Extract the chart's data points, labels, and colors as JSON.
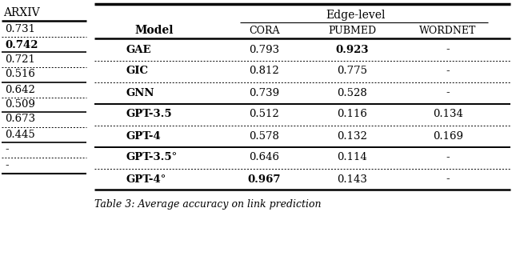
{
  "left_section": {
    "header": "ARXIV",
    "rows": [
      {
        "label": "0.731",
        "bold": false
      },
      {
        "label": "0.742",
        "bold": true
      },
      {
        "label": "0.721",
        "bold": false
      },
      {
        "label": "0.516",
        "bold": false
      },
      {
        "label": "0.642",
        "bold": false
      },
      {
        "label": "0.509",
        "bold": false
      },
      {
        "label": "0.673",
        "bold": false
      },
      {
        "label": "0.445",
        "bold": false
      },
      {
        "label": "-",
        "bold": false
      },
      {
        "label": "-",
        "bold": false
      }
    ],
    "solid_after": [
      0,
      2,
      4,
      6,
      8
    ],
    "dotted_after": [
      1,
      3,
      5,
      7,
      9
    ]
  },
  "right_section": {
    "group_header": "Edge-level",
    "col_headers": [
      "Model",
      "CORA",
      "PUBMED",
      "WORDNET"
    ],
    "rows": [
      {
        "model": "GAE",
        "cora": "0.793",
        "pubmed": "0.923",
        "wordnet": "-",
        "bold_model": true,
        "bold_cora": false,
        "bold_pubmed": true,
        "bold_wordnet": false,
        "line_below": "dotted"
      },
      {
        "model": "GIC",
        "cora": "0.812",
        "pubmed": "0.775",
        "wordnet": "-",
        "bold_model": true,
        "bold_cora": false,
        "bold_pubmed": false,
        "bold_wordnet": false,
        "line_below": "dotted"
      },
      {
        "model": "GNN",
        "cora": "0.739",
        "pubmed": "0.528",
        "wordnet": "-",
        "bold_model": true,
        "bold_cora": false,
        "bold_pubmed": false,
        "bold_wordnet": false,
        "line_below": "solid"
      },
      {
        "model": "GPT-3.5",
        "cora": "0.512",
        "pubmed": "0.116",
        "wordnet": "0.134",
        "bold_model": true,
        "bold_cora": false,
        "bold_pubmed": false,
        "bold_wordnet": false,
        "line_below": "dotted"
      },
      {
        "model": "GPT-4",
        "cora": "0.578",
        "pubmed": "0.132",
        "wordnet": "0.169",
        "bold_model": true,
        "bold_cora": false,
        "bold_pubmed": false,
        "bold_wordnet": false,
        "line_below": "solid"
      },
      {
        "model": "GPT-3.5°",
        "cora": "0.646",
        "pubmed": "0.114",
        "wordnet": "-",
        "bold_model": true,
        "bold_cora": false,
        "bold_pubmed": false,
        "bold_wordnet": false,
        "line_below": "dotted"
      },
      {
        "model": "GPT-4°",
        "cora": "0.967",
        "pubmed": "0.143",
        "wordnet": "-",
        "bold_model": true,
        "bold_cora": true,
        "bold_pubmed": false,
        "bold_wordnet": false,
        "line_below": "none"
      }
    ]
  },
  "caption": "Table 3: Average accuracy on link prediction",
  "bg_color": "#ffffff",
  "text_color": "#000000",
  "font_size": 9.5
}
